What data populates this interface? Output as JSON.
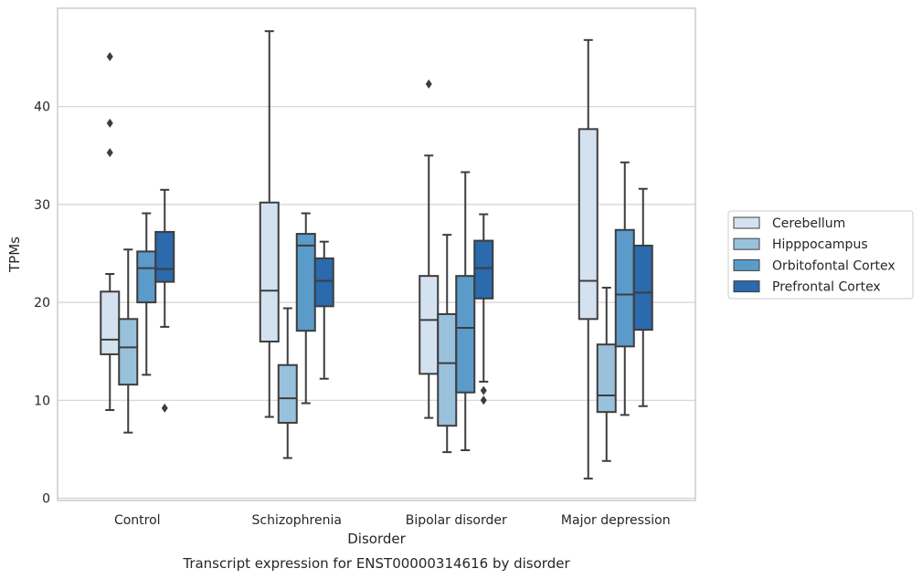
{
  "chart_data": {
    "type": "boxplot",
    "caption": "Transcript expression for ENST00000314616 by disorder",
    "xlabel": "Disorder",
    "ylabel": "TPMs",
    "ylim": [
      0,
      49
    ],
    "yticks": [
      0,
      10,
      20,
      30,
      40
    ],
    "grid": "horizontal",
    "legend_position": "right-outside",
    "categories": [
      "Control",
      "Schizophrenia",
      "Bipolar disorder",
      "Major depression"
    ],
    "series": [
      {
        "name": "Cerebellum",
        "color": "#d4e2f0",
        "boxes": [
          {
            "whisker_low": 9.0,
            "q1": 14.7,
            "median": 16.2,
            "q3": 21.1,
            "whisker_high": 22.9,
            "outliers": [
              35.3,
              38.3,
              45.1
            ]
          },
          {
            "whisker_low": 8.3,
            "q1": 16.0,
            "median": 21.2,
            "q3": 30.2,
            "whisker_high": 47.7,
            "outliers": []
          },
          {
            "whisker_low": 8.2,
            "q1": 12.7,
            "median": 18.2,
            "q3": 22.7,
            "whisker_high": 35.0,
            "outliers": [
              42.3
            ]
          },
          {
            "whisker_low": 2.0,
            "q1": 18.3,
            "median": 22.2,
            "q3": 37.7,
            "whisker_high": 46.8,
            "outliers": []
          }
        ]
      },
      {
        "name": "Hipppocampus",
        "color": "#9ac1dc",
        "boxes": [
          {
            "whisker_low": 6.7,
            "q1": 11.6,
            "median": 15.4,
            "q3": 18.3,
            "whisker_high": 25.4,
            "outliers": []
          },
          {
            "whisker_low": 4.1,
            "q1": 7.7,
            "median": 10.2,
            "q3": 13.6,
            "whisker_high": 19.4,
            "outliers": []
          },
          {
            "whisker_low": 4.7,
            "q1": 7.4,
            "median": 13.8,
            "q3": 18.8,
            "whisker_high": 26.9,
            "outliers": []
          },
          {
            "whisker_low": 3.8,
            "q1": 8.8,
            "median": 10.5,
            "q3": 15.7,
            "whisker_high": 21.5,
            "outliers": []
          }
        ]
      },
      {
        "name": "Orbitofontal Cortex",
        "color": "#5a9bc9",
        "boxes": [
          {
            "whisker_low": 12.6,
            "q1": 20.0,
            "median": 23.5,
            "q3": 25.2,
            "whisker_high": 29.1,
            "outliers": []
          },
          {
            "whisker_low": 9.7,
            "q1": 17.1,
            "median": 25.8,
            "q3": 27.0,
            "whisker_high": 29.1,
            "outliers": []
          },
          {
            "whisker_low": 4.9,
            "q1": 10.8,
            "median": 17.4,
            "q3": 22.7,
            "whisker_high": 33.3,
            "outliers": []
          },
          {
            "whisker_low": 8.5,
            "q1": 15.5,
            "median": 20.8,
            "q3": 27.4,
            "whisker_high": 34.3,
            "outliers": []
          }
        ]
      },
      {
        "name": "Prefrontal Cortex",
        "color": "#2a6aad",
        "boxes": [
          {
            "whisker_low": 17.5,
            "q1": 22.1,
            "median": 23.4,
            "q3": 27.2,
            "whisker_high": 31.5,
            "outliers": [
              9.2
            ]
          },
          {
            "whisker_low": 12.2,
            "q1": 19.6,
            "median": 22.2,
            "q3": 24.5,
            "whisker_high": 26.2,
            "outliers": []
          },
          {
            "whisker_low": 11.9,
            "q1": 20.4,
            "median": 23.5,
            "q3": 26.3,
            "whisker_high": 29.0,
            "outliers": [
              10.0,
              11.0
            ]
          },
          {
            "whisker_low": 9.4,
            "q1": 17.2,
            "median": 21.0,
            "q3": 25.8,
            "whisker_high": 31.6,
            "outliers": []
          }
        ]
      }
    ]
  }
}
